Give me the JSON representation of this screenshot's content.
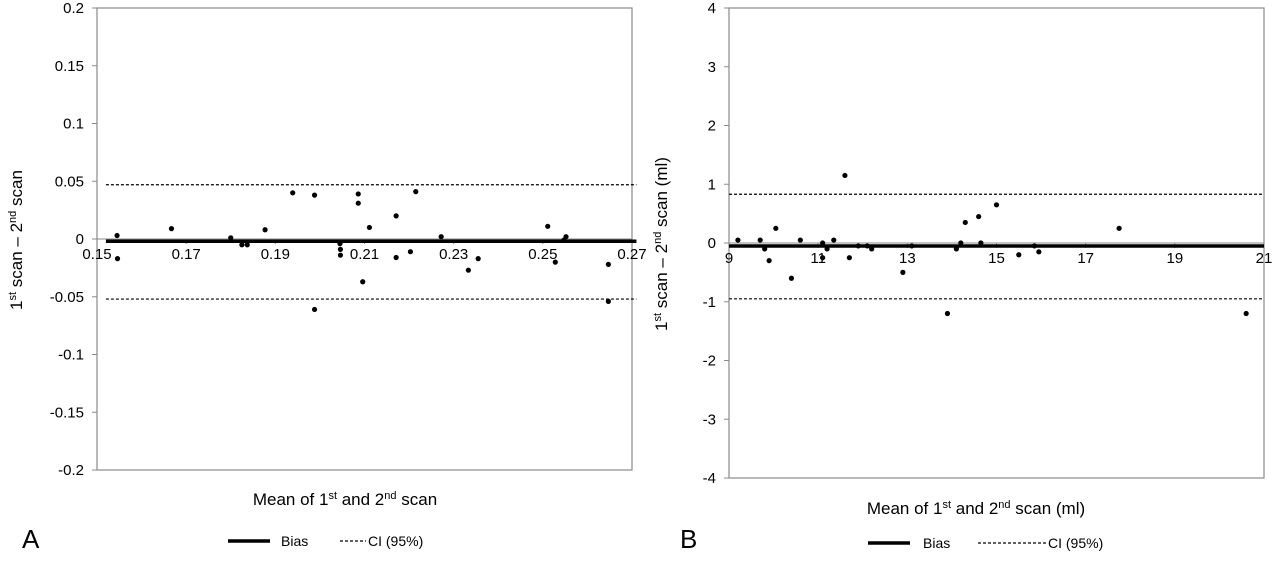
{
  "chart_data": [
    {
      "type": "scatter",
      "panel_label": "A",
      "xlabel_parts": [
        "Mean of 1",
        "st",
        " and 2",
        "nd",
        " scan"
      ],
      "ylabel_parts": [
        "1",
        "st",
        " scan – 2",
        "nd",
        " scan"
      ],
      "xlim": [
        0.15,
        0.27
      ],
      "ylim": [
        -0.2,
        0.2
      ],
      "x_ticks": [
        0.15,
        0.17,
        0.19,
        0.21,
        0.23,
        0.25,
        0.27
      ],
      "x_tick_labels": [
        "0.15",
        "0.17",
        "0.19",
        "0.21",
        "0.23",
        "0.25",
        "0.27"
      ],
      "y_ticks": [
        -0.2,
        -0.15,
        -0.1,
        -0.05,
        0,
        0.05,
        0.1,
        0.15,
        0.2
      ],
      "y_tick_labels": [
        "-0.2",
        "-0.15",
        "-0.1",
        "-0.05",
        "0",
        "0.05",
        "0.1",
        "0.15",
        "0.2"
      ],
      "bias": -0.002,
      "ci_upper": 0.047,
      "ci_lower": -0.052,
      "line_x_range": [
        0.152,
        0.271
      ],
      "legend": [
        "Bias",
        "CI (95%)"
      ],
      "points": [
        [
          0.1545,
          0.003
        ],
        [
          0.1546,
          -0.017
        ],
        [
          0.1667,
          0.009
        ],
        [
          0.18,
          0.001
        ],
        [
          0.1825,
          -0.005
        ],
        [
          0.1837,
          -0.005
        ],
        [
          0.1877,
          0.008
        ],
        [
          0.1939,
          0.04
        ],
        [
          0.1988,
          0.038
        ],
        [
          0.1988,
          -0.061
        ],
        [
          0.2045,
          -0.004
        ],
        [
          0.2046,
          -0.009
        ],
        [
          0.2046,
          -0.014
        ],
        [
          0.2086,
          0.039
        ],
        [
          0.2086,
          0.031
        ],
        [
          0.2096,
          -0.037
        ],
        [
          0.2111,
          0.01
        ],
        [
          0.2171,
          0.02
        ],
        [
          0.2171,
          -0.016
        ],
        [
          0.2203,
          -0.011
        ],
        [
          0.2215,
          0.041
        ],
        [
          0.2272,
          0.002
        ],
        [
          0.2333,
          -0.027
        ],
        [
          0.2355,
          -0.017
        ],
        [
          0.2511,
          0.011
        ],
        [
          0.2528,
          -0.02
        ],
        [
          0.2547,
          -0.001
        ],
        [
          0.2552,
          0.002
        ],
        [
          0.2647,
          -0.022
        ],
        [
          0.2647,
          -0.054
        ]
      ]
    },
    {
      "type": "scatter",
      "panel_label": "B",
      "xlabel_parts": [
        "Mean of 1",
        "st",
        " and 2",
        "nd",
        " scan (ml)"
      ],
      "ylabel_parts": [
        "1",
        "st",
        " scan – 2",
        "nd",
        " scan (ml)"
      ],
      "xlim": [
        9,
        21
      ],
      "ylim": [
        -4,
        4
      ],
      "x_ticks": [
        9,
        11,
        13,
        15,
        17,
        19,
        21
      ],
      "x_tick_labels": [
        "9",
        "11",
        "13",
        "15",
        "17",
        "19",
        "21"
      ],
      "y_ticks": [
        -4,
        -3,
        -2,
        -1,
        0,
        1,
        2,
        3,
        4
      ],
      "y_tick_labels": [
        "-4",
        "-3",
        "-2",
        "-1",
        "0",
        "1",
        "2",
        "3",
        "4"
      ],
      "bias": -0.05,
      "ci_upper": 0.83,
      "ci_lower": -0.95,
      "line_x_range": [
        9,
        21
      ],
      "legend": [
        "Bias",
        "CI (95%)"
      ],
      "points": [
        [
          9.2,
          0.05
        ],
        [
          9.7,
          0.05
        ],
        [
          9.8,
          -0.1
        ],
        [
          9.9,
          -0.3
        ],
        [
          10.05,
          0.25
        ],
        [
          10.4,
          -0.6
        ],
        [
          10.6,
          0.05
        ],
        [
          11.1,
          0.0
        ],
        [
          11.1,
          -0.25
        ],
        [
          11.2,
          -0.1
        ],
        [
          11.35,
          0.05
        ],
        [
          11.6,
          1.15
        ],
        [
          11.7,
          -0.25
        ],
        [
          11.9,
          -0.05
        ],
        [
          12.1,
          -0.05
        ],
        [
          12.2,
          -0.1
        ],
        [
          12.9,
          -0.5
        ],
        [
          13.1,
          -0.05
        ],
        [
          13.9,
          -1.2
        ],
        [
          14.1,
          -0.1
        ],
        [
          14.2,
          0.0
        ],
        [
          14.3,
          0.35
        ],
        [
          14.6,
          0.45
        ],
        [
          14.65,
          0.0
        ],
        [
          15.0,
          0.65
        ],
        [
          15.5,
          -0.2
        ],
        [
          15.85,
          -0.05
        ],
        [
          15.95,
          -0.15
        ],
        [
          17.75,
          0.25
        ],
        [
          20.6,
          -1.2
        ]
      ]
    }
  ]
}
